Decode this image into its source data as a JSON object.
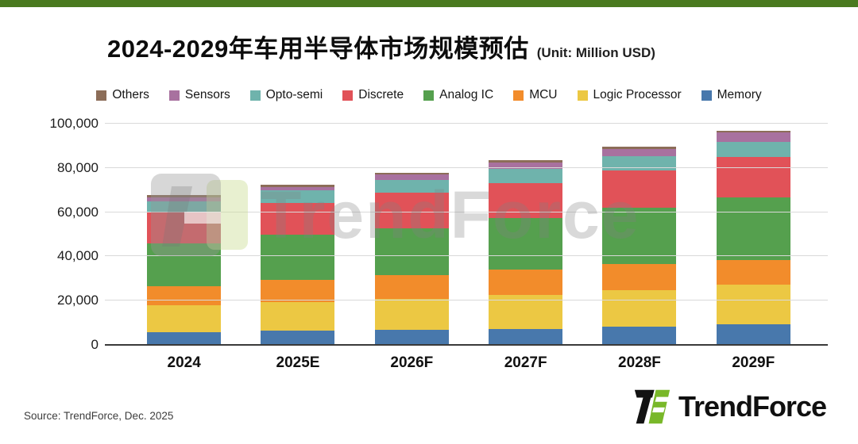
{
  "page": {
    "top_bar_color": "#4a7a1f",
    "background": "#ffffff"
  },
  "header": {
    "title": "2024-2029年车用半导体市场规模预估",
    "unit_label": "(Unit: Million USD)"
  },
  "chart_data": {
    "type": "bar",
    "stacked": true,
    "title": "2024-2029年车用半导体市场规模预估",
    "unit": "Million USD",
    "categories": [
      "2024",
      "2025E",
      "2026F",
      "2027F",
      "2028F",
      "2029F"
    ],
    "series": [
      {
        "name": "Memory",
        "color": "#4878ac",
        "values": [
          5700,
          6400,
          6700,
          7200,
          8100,
          9500
        ]
      },
      {
        "name": "Logic Processor",
        "color": "#ecc843",
        "values": [
          12100,
          13100,
          14000,
          15400,
          16600,
          17900
        ]
      },
      {
        "name": "MCU",
        "color": "#f28c2b",
        "values": [
          8700,
          9800,
          10900,
          11400,
          12000,
          11100
        ]
      },
      {
        "name": "Analog IC",
        "color": "#55a04e",
        "values": [
          19400,
          20600,
          21000,
          23500,
          25300,
          28300
        ]
      },
      {
        "name": "Discrete",
        "color": "#e15258",
        "values": [
          14500,
          14100,
          16200,
          15800,
          16700,
          18200
        ]
      },
      {
        "name": "Opto-semi",
        "color": "#6fb3ac",
        "values": [
          4400,
          5800,
          5800,
          6200,
          6800,
          6800
        ]
      },
      {
        "name": "Sensors",
        "color": "#a8719f",
        "values": [
          2000,
          1700,
          2500,
          2800,
          3200,
          4400
        ]
      },
      {
        "name": "Others",
        "color": "#8c6d58",
        "values": [
          800,
          1000,
          800,
          1200,
          900,
          700
        ]
      }
    ],
    "totals": [
      67600,
      72500,
      77900,
      83500,
      89600,
      96900
    ],
    "ylim": [
      0,
      100000
    ],
    "ytick_interval": 20000,
    "ytick_labels": [
      "0",
      "20,000",
      "40,000",
      "60,000",
      "80,000",
      "100,000"
    ],
    "grid": true,
    "legend_position": "top",
    "legend_order": [
      "Others",
      "Sensors",
      "Opto-semi",
      "Discrete",
      "Analog IC",
      "MCU",
      "Logic Processor",
      "Memory"
    ]
  },
  "watermark": {
    "text": "TrendForce"
  },
  "footer": {
    "source": "Source: TrendForce, Dec.  2025",
    "logo_text": "TrendForce"
  }
}
